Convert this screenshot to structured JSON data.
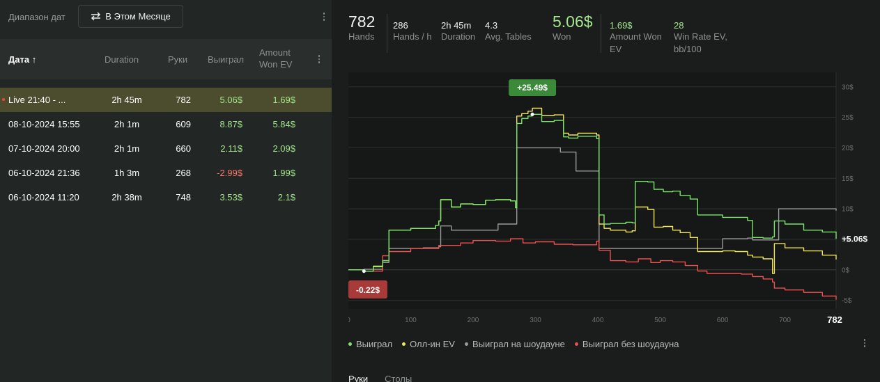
{
  "left": {
    "range_label": "Диапазон дат",
    "range_button": "В Этом Месяце",
    "range_icon": "swap-arrows-icon",
    "table": {
      "headers": {
        "date": "Дата ↑",
        "duration": "Duration",
        "hands": "Руки",
        "won": "Выиграл",
        "amount_won_ev": "Amount Won EV"
      },
      "rows": [
        {
          "date": "Live 21:40 - ...",
          "duration": "2h 45m",
          "hands": "782",
          "won": "5.06$",
          "ev": "1.69$",
          "won_color": "#a4e58d",
          "live": true
        },
        {
          "date": "08-10-2024 15:55",
          "duration": "2h 1m",
          "hands": "609",
          "won": "8.87$",
          "ev": "5.84$",
          "won_color": "#a4e58d",
          "live": false
        },
        {
          "date": "07-10-2024 20:00",
          "duration": "2h 1m",
          "hands": "660",
          "won": "2.11$",
          "ev": "2.09$",
          "won_color": "#a4e58d",
          "live": false
        },
        {
          "date": "06-10-2024 21:36",
          "duration": "1h 3m",
          "hands": "268",
          "won": "-2.99$",
          "ev": "1.99$",
          "won_color": "#ff7a6e",
          "live": false
        },
        {
          "date": "06-10-2024 11:20",
          "duration": "2h 38m",
          "hands": "748",
          "won": "3.53$",
          "ev": "2.1$",
          "won_color": "#a4e58d",
          "live": false
        }
      ]
    }
  },
  "stats": {
    "hands": {
      "value": "782",
      "label": "Hands"
    },
    "hands_per_hour": {
      "value": "286",
      "label": "Hands / h"
    },
    "duration": {
      "value": "2h 45m",
      "label": "Duration"
    },
    "avg_tables": {
      "value": "4.3",
      "label": "Avg. Tables"
    },
    "won": {
      "value": "5.06$",
      "label": "Won"
    },
    "amount_won_ev": {
      "value": "1.69$",
      "label": "Amount Won EV"
    },
    "win_rate_ev": {
      "value": "28",
      "label": "Win Rate EV, bb/100"
    }
  },
  "colors": {
    "green": "#7be46a",
    "yellow": "#f2e55c",
    "gray": "#9a9a9a",
    "red": "#ee4f4f",
    "positive": "#a4e58d",
    "negative": "#ff7a6e"
  },
  "tabs": [
    "Руки",
    "Столы"
  ],
  "chart_data": {
    "type": "line",
    "x_ticks": [
      "0",
      "100",
      "200",
      "300",
      "400",
      "500",
      "600",
      "700"
    ],
    "x_end_label": "782",
    "y_ticks": [
      "30$",
      "25$",
      "20$",
      "15$",
      "10$",
      "5$",
      "0$",
      "-5$"
    ],
    "xlim": [
      0,
      782
    ],
    "ylim": [
      -5.5,
      31
    ],
    "grid": true,
    "legend_position": "bottom-left",
    "annotations": {
      "max_label": "+25.49$",
      "min_label": "-0.22$",
      "end_label": "+5.06$",
      "max_point": [
        295,
        25.49
      ],
      "min_point": [
        25,
        -0.22
      ]
    },
    "series": [
      {
        "name": "Выиграл",
        "color": "#7be46a",
        "points": [
          [
            0,
            0
          ],
          [
            25,
            -0.22
          ],
          [
            40,
            0.5
          ],
          [
            55,
            1.5
          ],
          [
            65,
            6.5
          ],
          [
            100,
            6.8
          ],
          [
            140,
            7.3
          ],
          [
            145,
            8
          ],
          [
            148,
            11.5
          ],
          [
            165,
            10.3
          ],
          [
            180,
            10.8
          ],
          [
            200,
            10.7
          ],
          [
            220,
            11.4
          ],
          [
            236,
            11.5
          ],
          [
            260,
            11.3
          ],
          [
            268,
            10.2
          ],
          [
            270,
            24
          ],
          [
            278,
            24.8
          ],
          [
            288,
            25.2
          ],
          [
            295,
            25.49
          ],
          [
            310,
            24.3
          ],
          [
            330,
            24.5
          ],
          [
            345,
            21.8
          ],
          [
            353,
            21.6
          ],
          [
            368,
            21.9
          ],
          [
            398,
            21.5
          ],
          [
            402,
            9
          ],
          [
            410,
            7.5
          ],
          [
            420,
            7.6
          ],
          [
            445,
            7.8
          ],
          [
            455,
            7.7
          ],
          [
            460,
            14.5
          ],
          [
            480,
            14.4
          ],
          [
            490,
            13.2
          ],
          [
            505,
            12.8
          ],
          [
            520,
            12.9
          ],
          [
            532,
            12.2
          ],
          [
            548,
            11.6
          ],
          [
            560,
            9
          ],
          [
            600,
            8.6
          ],
          [
            620,
            8.6
          ],
          [
            640,
            8.1
          ],
          [
            648,
            5.3
          ],
          [
            665,
            5.2
          ],
          [
            680,
            5.4
          ],
          [
            683,
            8
          ],
          [
            700,
            7.5
          ],
          [
            730,
            6.5
          ],
          [
            760,
            6.2
          ],
          [
            782,
            5.06
          ]
        ]
      },
      {
        "name": "Олл-ин EV",
        "color": "#f2e55c",
        "points": [
          [
            0,
            0
          ],
          [
            25,
            -0.22
          ],
          [
            40,
            0.6
          ],
          [
            55,
            1.5
          ],
          [
            65,
            6.5
          ],
          [
            100,
            6.8
          ],
          [
            140,
            7.3
          ],
          [
            145,
            8
          ],
          [
            148,
            11.5
          ],
          [
            165,
            10.3
          ],
          [
            180,
            10.8
          ],
          [
            200,
            10.7
          ],
          [
            220,
            11.4
          ],
          [
            236,
            11.5
          ],
          [
            260,
            11.3
          ],
          [
            268,
            10.2
          ],
          [
            270,
            25.2
          ],
          [
            278,
            25.6
          ],
          [
            288,
            26
          ],
          [
            295,
            26.5
          ],
          [
            310,
            25.3
          ],
          [
            330,
            25.4
          ],
          [
            345,
            22.4
          ],
          [
            353,
            22.1
          ],
          [
            368,
            22.4
          ],
          [
            398,
            22.1
          ],
          [
            402,
            7.5
          ],
          [
            410,
            6.8
          ],
          [
            420,
            6.5
          ],
          [
            445,
            6.2
          ],
          [
            455,
            6.4
          ],
          [
            460,
            10.3
          ],
          [
            480,
            9.9
          ],
          [
            490,
            7
          ],
          [
            505,
            7.1
          ],
          [
            520,
            6.5
          ],
          [
            532,
            6.1
          ],
          [
            548,
            5.3
          ],
          [
            560,
            3
          ],
          [
            600,
            3.1
          ],
          [
            620,
            3
          ],
          [
            640,
            2.4
          ],
          [
            648,
            2.1
          ],
          [
            665,
            1.8
          ],
          [
            680,
            -0.6
          ],
          [
            683,
            4.3
          ],
          [
            700,
            3.6
          ],
          [
            730,
            3.1
          ],
          [
            760,
            2.4
          ],
          [
            782,
            1.69
          ]
        ]
      },
      {
        "name": "Выиграл на шоудауне",
        "color": "#9a9a9a",
        "points": [
          [
            0,
            0
          ],
          [
            25,
            0.1
          ],
          [
            55,
            1.2
          ],
          [
            65,
            3.5
          ],
          [
            120,
            3.6
          ],
          [
            145,
            3.8
          ],
          [
            148,
            7.2
          ],
          [
            165,
            6.5
          ],
          [
            210,
            6.5
          ],
          [
            240,
            7.5
          ],
          [
            265,
            7.5
          ],
          [
            270,
            20
          ],
          [
            300,
            20
          ],
          [
            340,
            19.3
          ],
          [
            365,
            16.2
          ],
          [
            398,
            16.2
          ],
          [
            402,
            3.5
          ],
          [
            600,
            5.1
          ],
          [
            640,
            5.2
          ],
          [
            648,
            4.9
          ],
          [
            660,
            4.9
          ],
          [
            678,
            4.9
          ],
          [
            690,
            10
          ],
          [
            700,
            10
          ],
          [
            782,
            9.7
          ]
        ]
      },
      {
        "name": "Выиграл без шоудауна",
        "color": "#ee4f4f",
        "points": [
          [
            0,
            0
          ],
          [
            25,
            -0.22
          ],
          [
            55,
            2.3
          ],
          [
            65,
            3
          ],
          [
            100,
            3.5
          ],
          [
            140,
            3.5
          ],
          [
            145,
            4
          ],
          [
            180,
            4.4
          ],
          [
            200,
            4.8
          ],
          [
            236,
            4.7
          ],
          [
            260,
            5.1
          ],
          [
            280,
            4.4
          ],
          [
            300,
            4.6
          ],
          [
            330,
            4.2
          ],
          [
            360,
            4.1
          ],
          [
            398,
            4.7
          ],
          [
            402,
            3.2
          ],
          [
            420,
            1.5
          ],
          [
            445,
            1.3
          ],
          [
            465,
            1.8
          ],
          [
            485,
            1.2
          ],
          [
            500,
            1.5
          ],
          [
            520,
            1.3
          ],
          [
            540,
            0.7
          ],
          [
            560,
            -0.2
          ],
          [
            575,
            -0.6
          ],
          [
            600,
            -0.6
          ],
          [
            630,
            -0.7
          ],
          [
            648,
            -1.1
          ],
          [
            665,
            -1.5
          ],
          [
            680,
            -2
          ],
          [
            683,
            -3
          ],
          [
            700,
            -3.3
          ],
          [
            730,
            -3.7
          ],
          [
            760,
            -4.3
          ],
          [
            782,
            -4.9
          ]
        ]
      }
    ]
  }
}
